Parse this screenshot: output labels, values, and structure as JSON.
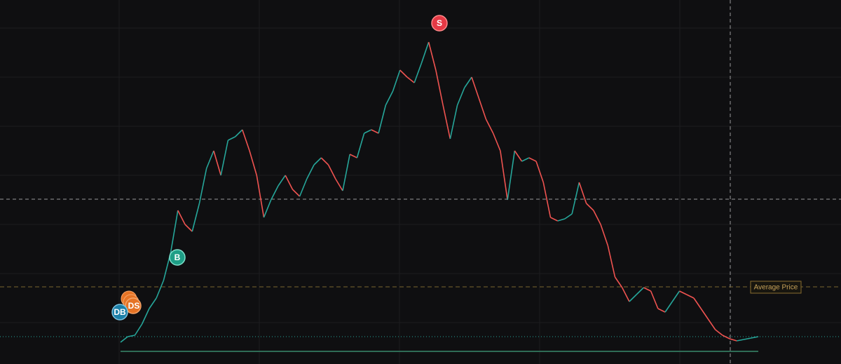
{
  "chart_data": {
    "type": "line",
    "up_color": "#26a69a",
    "down_color": "#ef5350",
    "values": [
      12,
      20,
      22,
      38,
      60,
      75,
      100,
      140,
      200,
      180,
      170,
      210,
      260,
      285,
      250,
      300,
      305,
      315,
      285,
      250,
      190,
      215,
      235,
      250,
      230,
      220,
      245,
      265,
      275,
      265,
      245,
      228,
      280,
      275,
      310,
      315,
      310,
      350,
      370,
      400,
      390,
      382,
      410,
      440,
      400,
      350,
      302,
      350,
      375,
      390,
      360,
      330,
      310,
      285,
      215,
      285,
      270,
      275,
      270,
      240,
      190,
      185,
      188,
      195,
      240,
      210,
      200,
      180,
      150,
      105,
      90,
      70,
      80,
      90,
      85,
      60,
      55,
      70,
      85,
      80,
      75,
      60,
      45,
      30,
      22,
      17,
      14,
      16,
      18,
      20
    ],
    "markers": {
      "sell": "S",
      "buy": "B",
      "dca_buy": "DB",
      "dca_sell": "DS"
    },
    "average_price_label": "Average Price"
  }
}
